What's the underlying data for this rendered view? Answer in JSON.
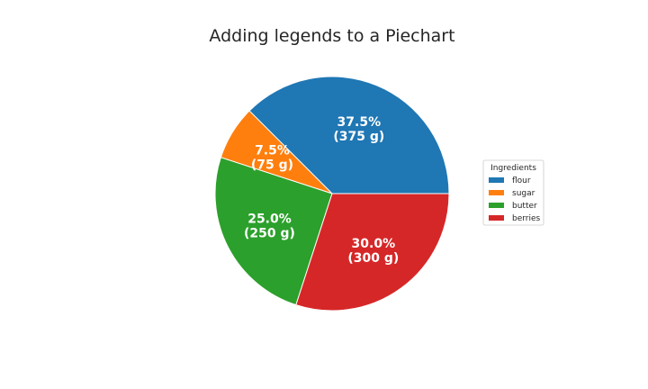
{
  "chart_data": {
    "type": "pie",
    "title": "Adding legends to a Piechart",
    "categories": [
      "flour",
      "sugar",
      "butter",
      "berries"
    ],
    "values": [
      375,
      75,
      250,
      300
    ],
    "unit": "g",
    "percent_labels": [
      "37.5%",
      "7.5%",
      "25.0%",
      "30.0%"
    ],
    "value_labels": [
      "(375 g)",
      "(75 g)",
      "(250 g)",
      "(300 g)"
    ],
    "colors": [
      "#1f77b4",
      "#ff7f0e",
      "#2ca02c",
      "#d62728"
    ],
    "start_angle_deg": 0,
    "direction": "counterclockwise",
    "legend": {
      "title": "Ingredients",
      "placement": "right",
      "entries": [
        "flour",
        "sugar",
        "butter",
        "berries"
      ]
    }
  }
}
